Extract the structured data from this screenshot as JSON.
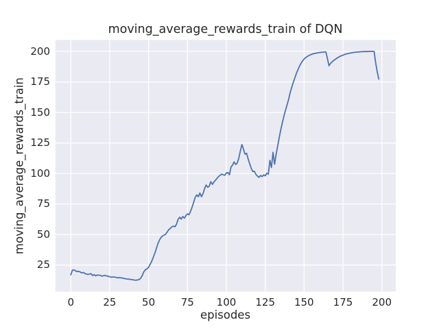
{
  "chart_data": {
    "type": "line",
    "title": "moving_average_rewards_train of DQN",
    "xlabel": "episodes",
    "ylabel": "moving_average_rewards_train",
    "xlim": [
      -9.95,
      208.95
    ],
    "ylim": [
      3.2,
      209.4
    ],
    "xticks": [
      0,
      25,
      50,
      75,
      100,
      125,
      150,
      175,
      200
    ],
    "yticks": [
      25,
      50,
      75,
      100,
      125,
      150,
      175,
      200
    ],
    "grid": true,
    "legend_position": "none",
    "style": {
      "line_color": "#4C72B0",
      "axes_background": "#EAEAF2",
      "grid_color": "#FFFFFF",
      "text_color": "#262626",
      "figure_background": "#FFFFFF"
    },
    "series": [
      {
        "name": "moving_average_rewards_train",
        "points": [
          [
            0,
            17.0
          ],
          [
            1,
            20.8
          ],
          [
            2,
            20.9
          ],
          [
            3,
            20.3
          ],
          [
            4,
            19.6
          ],
          [
            5,
            19.8
          ],
          [
            6,
            19.3
          ],
          [
            7,
            18.6
          ],
          [
            8,
            18.9
          ],
          [
            9,
            18.1
          ],
          [
            10,
            17.6
          ],
          [
            11,
            17.3
          ],
          [
            12,
            17.6
          ],
          [
            13,
            17.9
          ],
          [
            14,
            16.4
          ],
          [
            15,
            17.2
          ],
          [
            16,
            16.1
          ],
          [
            17,
            16.9
          ],
          [
            18,
            16.6
          ],
          [
            19,
            16.6
          ],
          [
            20,
            15.9
          ],
          [
            21,
            16.2
          ],
          [
            22,
            16.5
          ],
          [
            23,
            16.1
          ],
          [
            24,
            15.8
          ],
          [
            25,
            15.5
          ],
          [
            26,
            15.0
          ],
          [
            27,
            15.2
          ],
          [
            28,
            15.2
          ],
          [
            29,
            14.9
          ],
          [
            30,
            14.6
          ],
          [
            31,
            14.6
          ],
          [
            32,
            14.6
          ],
          [
            33,
            14.4
          ],
          [
            34,
            14.1
          ],
          [
            35,
            13.8
          ],
          [
            36,
            13.6
          ],
          [
            37,
            13.5
          ],
          [
            38,
            13.3
          ],
          [
            39,
            13.1
          ],
          [
            40,
            12.9
          ],
          [
            41,
            12.7
          ],
          [
            42,
            12.6
          ],
          [
            43,
            12.8
          ],
          [
            44,
            13.2
          ],
          [
            45,
            14.3
          ],
          [
            46,
            16.6
          ],
          [
            47,
            19.6
          ],
          [
            48,
            21.2
          ],
          [
            49,
            21.9
          ],
          [
            50,
            23.2
          ],
          [
            51,
            25.6
          ],
          [
            52,
            28.1
          ],
          [
            53,
            31.2
          ],
          [
            54,
            34.6
          ],
          [
            55,
            38.5
          ],
          [
            56,
            42.5
          ],
          [
            57,
            45.5
          ],
          [
            58,
            47.6
          ],
          [
            59,
            48.9
          ],
          [
            60,
            49.5
          ],
          [
            61,
            50.3
          ],
          [
            62,
            52.1
          ],
          [
            63,
            54.0
          ],
          [
            64,
            55.1
          ],
          [
            65,
            56.4
          ],
          [
            66,
            56.8
          ],
          [
            67,
            56.4
          ],
          [
            68,
            58.6
          ],
          [
            69,
            62.5
          ],
          [
            70,
            64.2
          ],
          [
            71,
            62.6
          ],
          [
            72,
            64.8
          ],
          [
            73,
            63.4
          ],
          [
            74,
            65.5
          ],
          [
            75,
            67.0
          ],
          [
            76,
            66.2
          ],
          [
            77,
            69.0
          ],
          [
            78,
            72.5
          ],
          [
            79,
            76.5
          ],
          [
            80,
            80.5
          ],
          [
            81,
            82.5
          ],
          [
            82,
            81.0
          ],
          [
            83,
            84.0
          ],
          [
            84,
            81.0
          ],
          [
            85,
            83.5
          ],
          [
            86,
            87.5
          ],
          [
            87,
            90.5
          ],
          [
            88,
            88.8
          ],
          [
            89,
            89.5
          ],
          [
            90,
            93.3
          ],
          [
            91,
            91.0
          ],
          [
            92,
            93.0
          ],
          [
            93,
            94.5
          ],
          [
            94,
            96.0
          ],
          [
            95,
            97.5
          ],
          [
            96,
            98.5
          ],
          [
            97,
            99.5
          ],
          [
            98,
            99.0
          ],
          [
            99,
            98.5
          ],
          [
            100,
            100.5
          ],
          [
            101,
            100.8
          ],
          [
            102,
            99.0
          ],
          [
            103,
            105.3
          ],
          [
            104,
            107.0
          ],
          [
            105,
            109.5
          ],
          [
            106,
            107.3
          ],
          [
            107,
            108.6
          ],
          [
            108,
            112.5
          ],
          [
            109,
            118.5
          ],
          [
            110,
            123.7
          ],
          [
            111,
            120.0
          ],
          [
            112,
            115.8
          ],
          [
            113,
            116.6
          ],
          [
            114,
            112.0
          ],
          [
            115,
            108.0
          ],
          [
            116,
            104.3
          ],
          [
            117,
            101.5
          ],
          [
            118,
            101.8
          ],
          [
            119,
            99.2
          ],
          [
            120,
            97.9
          ],
          [
            121,
            96.8
          ],
          [
            122,
            98.4
          ],
          [
            123,
            97.4
          ],
          [
            124,
            98.9
          ],
          [
            125,
            98.1
          ],
          [
            126,
            100.2
          ],
          [
            127,
            99.5
          ],
          [
            128,
            110.8
          ],
          [
            129,
            104.9
          ],
          [
            130,
            117.3
          ],
          [
            131,
            107.6
          ],
          [
            132,
            115.5
          ],
          [
            133,
            122.5
          ],
          [
            134,
            129.5
          ],
          [
            135,
            135.8
          ],
          [
            136,
            141.5
          ],
          [
            137,
            147.0
          ],
          [
            138,
            151.5
          ],
          [
            139,
            156.0
          ],
          [
            140,
            160.5
          ],
          [
            141,
            166.0
          ],
          [
            142,
            170.5
          ],
          [
            143,
            174.5
          ],
          [
            144,
            178.2
          ],
          [
            145,
            181.8
          ],
          [
            146,
            185.0
          ],
          [
            147,
            187.8
          ],
          [
            148,
            190.2
          ],
          [
            149,
            192.2
          ],
          [
            150,
            193.8
          ],
          [
            151,
            194.9
          ],
          [
            152,
            195.8
          ],
          [
            153,
            196.6
          ],
          [
            154,
            197.2
          ],
          [
            155,
            197.7
          ],
          [
            156,
            198.1
          ],
          [
            157,
            198.4
          ],
          [
            158,
            198.7
          ],
          [
            159,
            198.9
          ],
          [
            160,
            199.1
          ],
          [
            161,
            199.3
          ],
          [
            162,
            199.4
          ],
          [
            163,
            199.5
          ],
          [
            164,
            199.6
          ],
          [
            165,
            194.0
          ],
          [
            166,
            188.3
          ],
          [
            167,
            190.2
          ],
          [
            168,
            191.5
          ],
          [
            169,
            192.6
          ],
          [
            170,
            193.5
          ],
          [
            171,
            194.4
          ],
          [
            172,
            195.2
          ],
          [
            173,
            195.9
          ],
          [
            174,
            196.5
          ],
          [
            175,
            197.0
          ],
          [
            176,
            197.5
          ],
          [
            177,
            197.9
          ],
          [
            178,
            198.2
          ],
          [
            179,
            198.5
          ],
          [
            180,
            198.8
          ],
          [
            181,
            199.0
          ],
          [
            182,
            199.2
          ],
          [
            183,
            199.4
          ],
          [
            184,
            199.5
          ],
          [
            185,
            199.6
          ],
          [
            186,
            199.7
          ],
          [
            187,
            199.8
          ],
          [
            188,
            199.8
          ],
          [
            189,
            199.9
          ],
          [
            190,
            199.9
          ],
          [
            191,
            199.9
          ],
          [
            192,
            200.0
          ],
          [
            193,
            200.0
          ],
          [
            194,
            200.0
          ],
          [
            195,
            200.0
          ],
          [
            196,
            191.0
          ],
          [
            197,
            183.5
          ],
          [
            198,
            177.3
          ]
        ]
      }
    ]
  }
}
